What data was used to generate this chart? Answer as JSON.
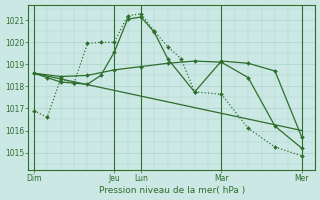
{
  "bg_color": "#cce8e4",
  "grid_color": "#aad4cc",
  "line_color": "#2d6e2d",
  "xlabel": "Pression niveau de la mer( hPa )",
  "ylim": [
    1014.2,
    1021.7
  ],
  "yticks": [
    1015,
    1016,
    1017,
    1018,
    1019,
    1020,
    1021
  ],
  "day_labels": [
    "Dim",
    "Jeu",
    "Lun",
    "Mar",
    "Mer"
  ],
  "day_positions": [
    0,
    72,
    96,
    168,
    240
  ],
  "xlim": [
    -5,
    252
  ],
  "series": [
    {
      "x": [
        0,
        12,
        24,
        36,
        48,
        60,
        72,
        84,
        96,
        108,
        120,
        132,
        144,
        168,
        192,
        216,
        240
      ],
      "y": [
        1016.9,
        1016.6,
        1018.35,
        1018.15,
        1019.95,
        1020.0,
        1020.0,
        1021.2,
        1021.3,
        1020.5,
        1019.8,
        1019.25,
        1017.75,
        1017.65,
        1016.1,
        1015.25,
        1014.85
      ],
      "style": "dotted",
      "marker": "D",
      "markersize": 2.0,
      "lw": 0.9
    },
    {
      "x": [
        0,
        12,
        24,
        36,
        48,
        60,
        72,
        84,
        96,
        108,
        120,
        144,
        168,
        192,
        216,
        240
      ],
      "y": [
        1018.6,
        1018.4,
        1018.2,
        1018.15,
        1018.1,
        1018.5,
        1019.55,
        1021.05,
        1021.15,
        1020.45,
        1019.25,
        1017.75,
        1019.15,
        1019.05,
        1018.7,
        1015.7
      ],
      "style": "solid",
      "marker": "D",
      "markersize": 2.0,
      "lw": 0.9
    },
    {
      "x": [
        0,
        24,
        48,
        72,
        96,
        120,
        144,
        168,
        192,
        216,
        240
      ],
      "y": [
        1018.6,
        1018.45,
        1018.5,
        1018.75,
        1018.9,
        1019.05,
        1019.15,
        1019.1,
        1018.4,
        1016.2,
        1015.2
      ],
      "style": "solid",
      "marker": "D",
      "markersize": 2.0,
      "lw": 0.9
    },
    {
      "x": [
        0,
        240
      ],
      "y": [
        1018.6,
        1016.0
      ],
      "style": "solid",
      "marker": null,
      "markersize": 0,
      "lw": 0.9
    }
  ]
}
